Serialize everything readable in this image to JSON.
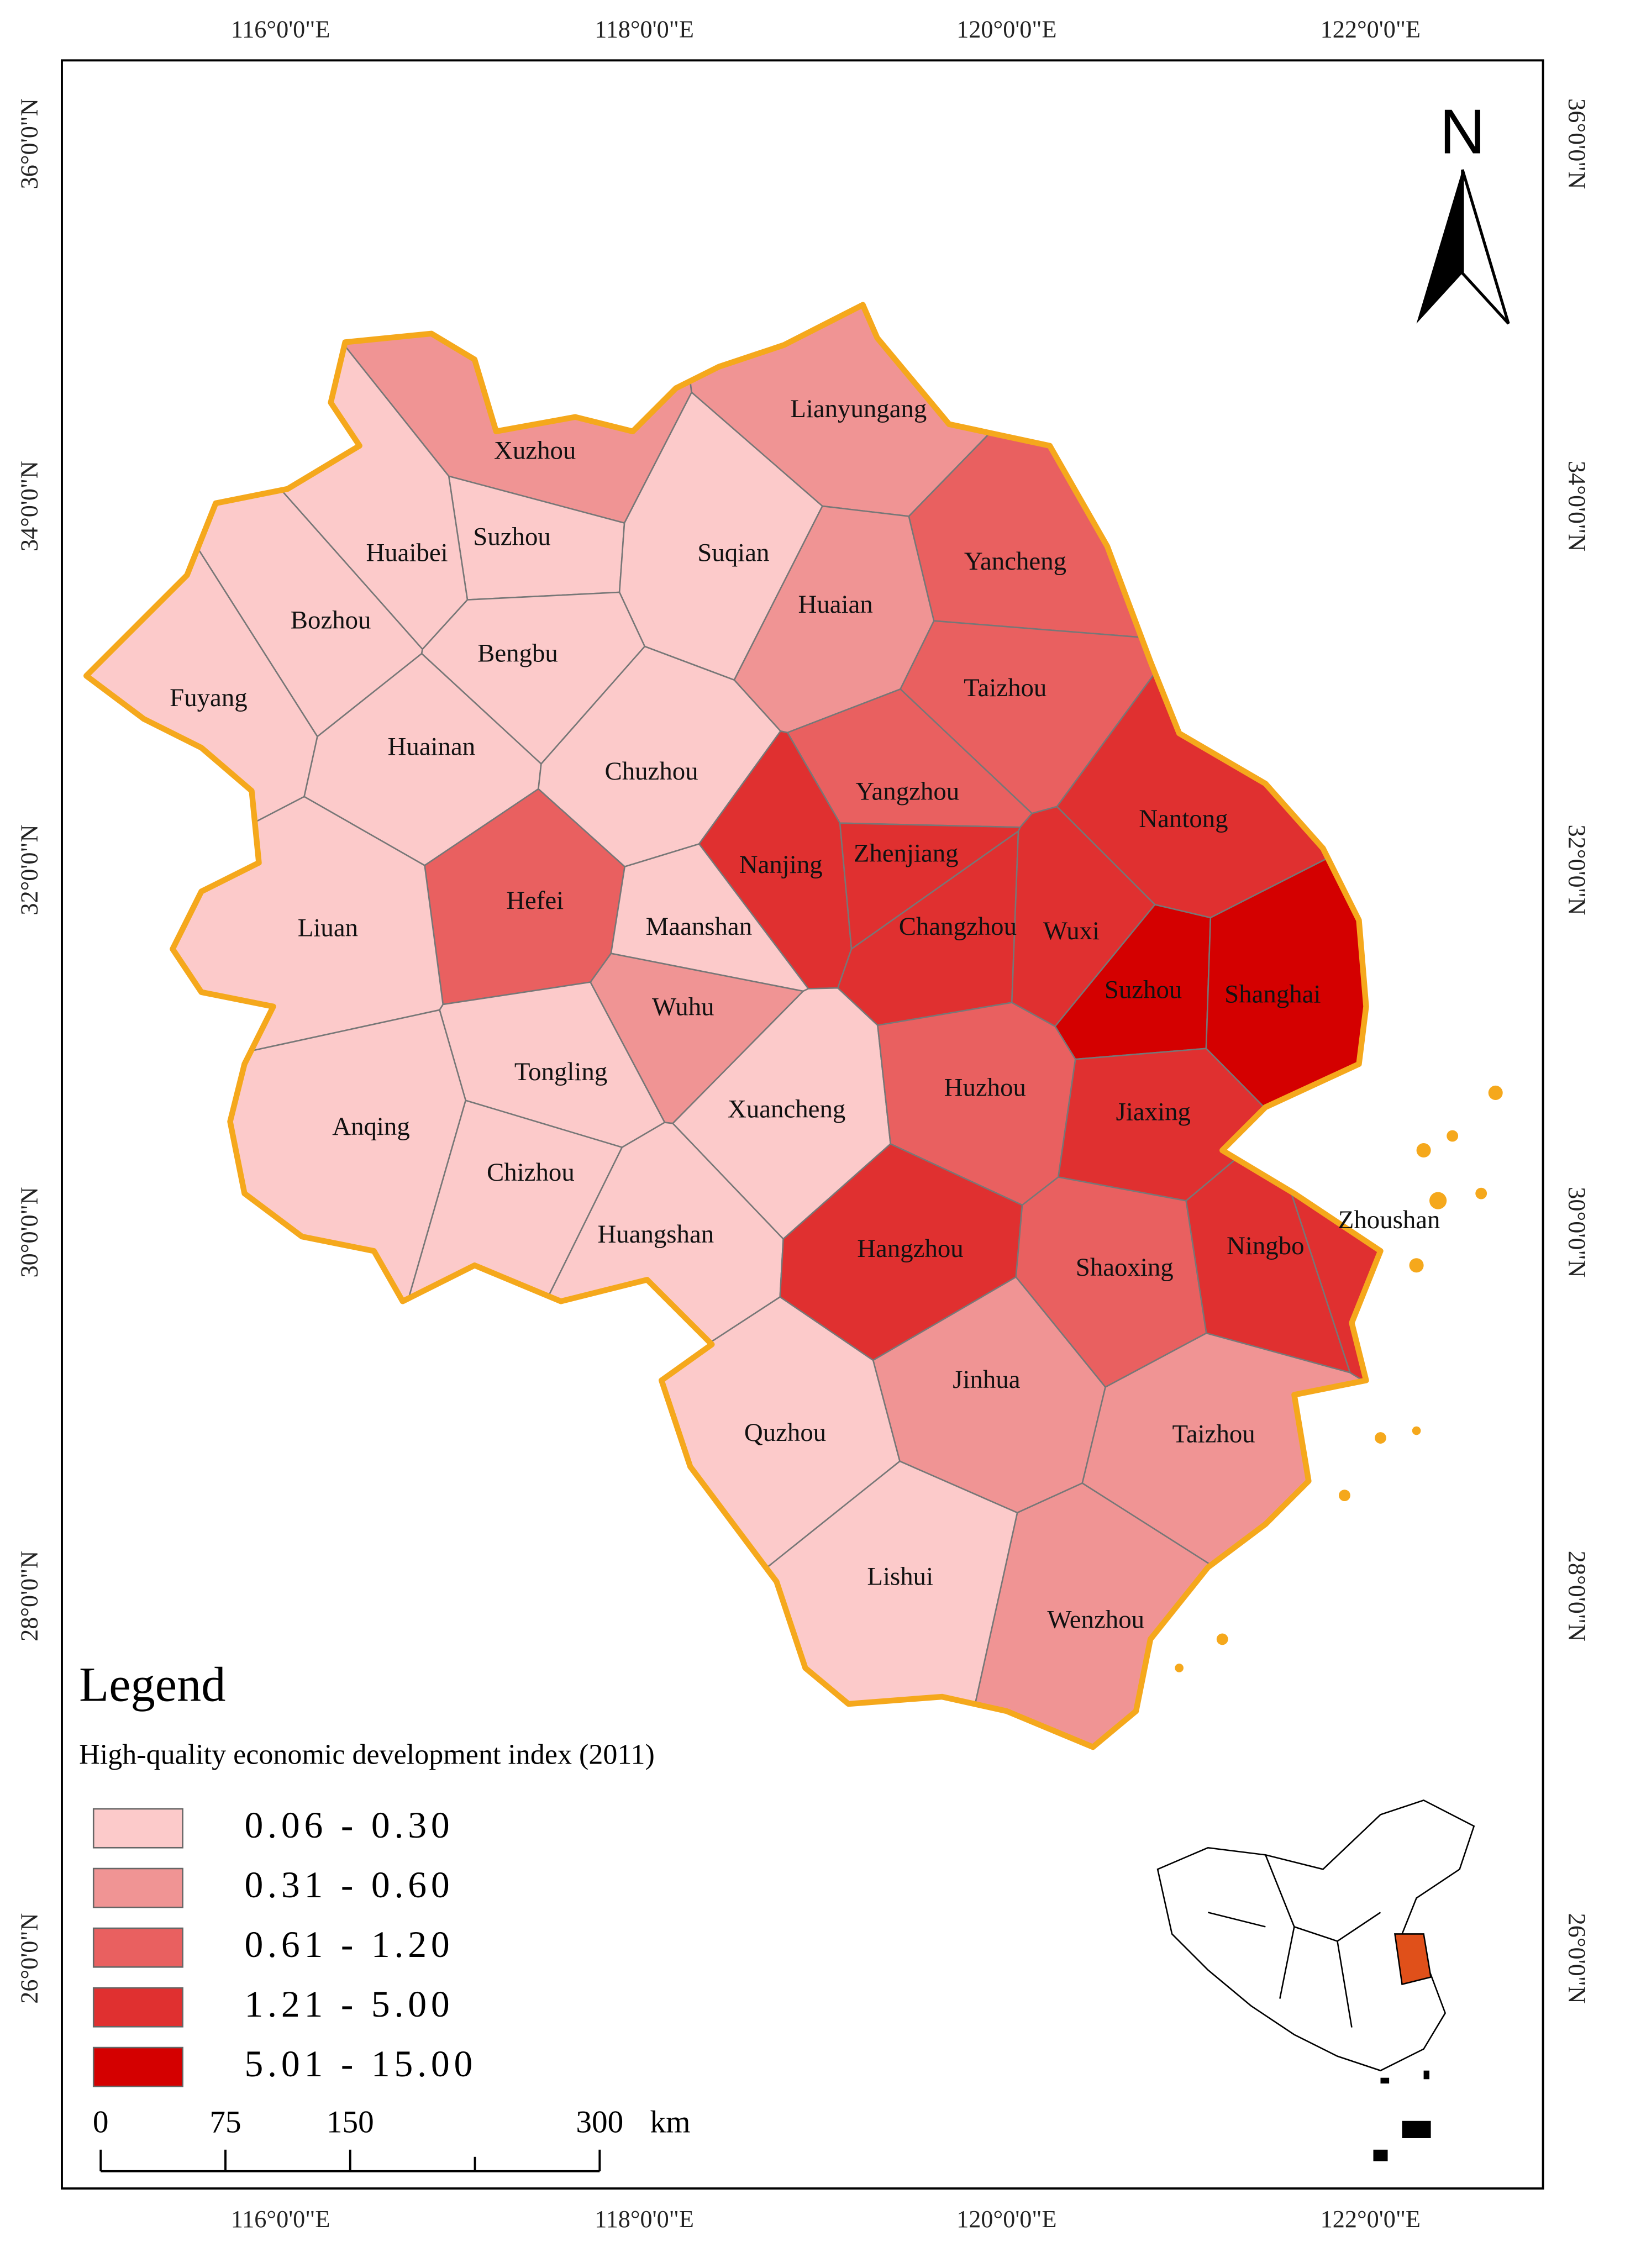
{
  "map": {
    "north": "N",
    "legend_title": "Legend",
    "legend_subtitle": "High-quality economic development index (2011)",
    "classes": [
      {
        "label": "0.06 - 0.30",
        "color": "#fccaca"
      },
      {
        "label": "0.31 - 0.60",
        "color": "#f09494"
      },
      {
        "label": "0.61 - 1.20",
        "color": "#e96060"
      },
      {
        "label": "1.21 - 5.00",
        "color": "#e03030"
      },
      {
        "label": "5.01 - 15.00",
        "color": "#d40000"
      }
    ],
    "cities": [
      {
        "name": "Xuzhou",
        "class": 1
      },
      {
        "name": "Lianyungang",
        "class": 1
      },
      {
        "name": "Suzhou",
        "class": 0
      },
      {
        "name": "Huaibei",
        "class": 0
      },
      {
        "name": "Suqian",
        "class": 0
      },
      {
        "name": "Bozhou",
        "class": 0
      },
      {
        "name": "Bengbu",
        "class": 0
      },
      {
        "name": "Huaian",
        "class": 1
      },
      {
        "name": "Yancheng",
        "class": 2
      },
      {
        "name": "Fuyang",
        "class": 0
      },
      {
        "name": "Taizhou",
        "class": 2
      },
      {
        "name": "Huainan",
        "class": 0
      },
      {
        "name": "Chuzhou",
        "class": 0
      },
      {
        "name": "Yangzhou",
        "class": 2
      },
      {
        "name": "Nantong",
        "class": 3
      },
      {
        "name": "Nanjing",
        "class": 3
      },
      {
        "name": "Zhenjiang",
        "class": 3
      },
      {
        "name": "Hefei",
        "class": 2
      },
      {
        "name": "Maanshan",
        "class": 0
      },
      {
        "name": "Changzhou",
        "class": 3
      },
      {
        "name": "Wuxi",
        "class": 3
      },
      {
        "name": "Liuan",
        "class": 0
      },
      {
        "name": "Suzhou",
        "class": 4
      },
      {
        "name": "Shanghai",
        "class": 4
      },
      {
        "name": "Wuhu",
        "class": 1
      },
      {
        "name": "Tongling",
        "class": 0
      },
      {
        "name": "Xuancheng",
        "class": 0
      },
      {
        "name": "Huzhou",
        "class": 2
      },
      {
        "name": "Jiaxing",
        "class": 3
      },
      {
        "name": "Anqing",
        "class": 0
      },
      {
        "name": "Chizhou",
        "class": 0
      },
      {
        "name": "Zhoushan",
        "class": 3
      },
      {
        "name": "Huangshan",
        "class": 0
      },
      {
        "name": "Hangzhou",
        "class": 3
      },
      {
        "name": "Shaoxing",
        "class": 2
      },
      {
        "name": "Ningbo",
        "class": 3
      },
      {
        "name": "Jinhua",
        "class": 1
      },
      {
        "name": "Quzhou",
        "class": 0
      },
      {
        "name": "Taizhou",
        "class": 1
      },
      {
        "name": "Lishui",
        "class": 0
      },
      {
        "name": "Wenzhou",
        "class": 1
      }
    ],
    "longitude_labels": [
      "116°0'0\"E",
      "118°0'0\"E",
      "120°0'0\"E",
      "122°0'0\"E"
    ],
    "latitude_labels": [
      "36°0'0\"N",
      "34°0'0\"N",
      "32°0'0\"N",
      "30°0'0\"N",
      "28°0'0\"N",
      "26°0'0\"N"
    ],
    "scale_bar": {
      "ticks": [
        0,
        75,
        150,
        300
      ],
      "unit": "km"
    }
  }
}
